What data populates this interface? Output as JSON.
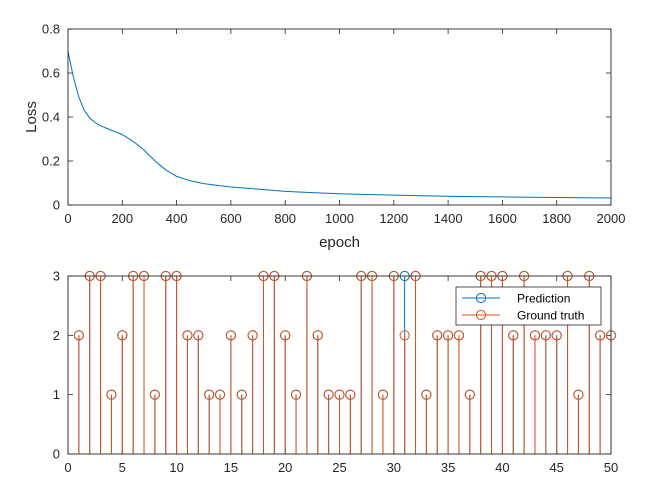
{
  "chart_data": [
    {
      "type": "line",
      "xlabel": "epoch",
      "ylabel": "Loss",
      "xlim": [
        0,
        2000
      ],
      "ylim": [
        0,
        0.8
      ],
      "xticks": [
        0,
        200,
        400,
        600,
        800,
        1000,
        1200,
        1400,
        1600,
        1800,
        2000
      ],
      "yticks": [
        0,
        0.2,
        0.4,
        0.6,
        0.8
      ],
      "grid": false,
      "series": [
        {
          "color": "#0072BD",
          "x": [
            0,
            20,
            40,
            60,
            80,
            100,
            120,
            150,
            180,
            200,
            220,
            250,
            280,
            300,
            330,
            360,
            400,
            450,
            500,
            550,
            600,
            650,
            700,
            800,
            900,
            1000,
            1100,
            1200,
            1300,
            1400,
            1500,
            1600,
            1700,
            1800,
            1900,
            2000
          ],
          "y": [
            0.7,
            0.58,
            0.49,
            0.43,
            0.395,
            0.375,
            0.36,
            0.345,
            0.33,
            0.32,
            0.305,
            0.28,
            0.25,
            0.225,
            0.19,
            0.16,
            0.13,
            0.11,
            0.097,
            0.089,
            0.082,
            0.077,
            0.072,
            0.062,
            0.056,
            0.051,
            0.048,
            0.045,
            0.042,
            0.04,
            0.038,
            0.037,
            0.035,
            0.034,
            0.033,
            0.032
          ]
        }
      ]
    },
    {
      "type": "stem",
      "xlim": [
        0,
        50
      ],
      "ylim": [
        0,
        3
      ],
      "xticks": [
        0,
        5,
        10,
        15,
        20,
        25,
        30,
        35,
        40,
        45,
        50
      ],
      "yticks": [
        0,
        1,
        2,
        3
      ],
      "grid": false,
      "legend": "top-right",
      "series": [
        {
          "name": "Prediction",
          "color": "#0072BD",
          "x": [
            1,
            2,
            3,
            4,
            5,
            6,
            7,
            8,
            9,
            10,
            11,
            12,
            13,
            14,
            15,
            16,
            17,
            18,
            19,
            20,
            21,
            22,
            23,
            24,
            25,
            26,
            27,
            28,
            29,
            30,
            31,
            32,
            33,
            34,
            35,
            36,
            37,
            38,
            39,
            40,
            41,
            42,
            43,
            44,
            45,
            46,
            47,
            48,
            49,
            50
          ],
          "y": [
            2,
            3,
            3,
            1,
            2,
            3,
            3,
            1,
            3,
            3,
            2,
            2,
            1,
            1,
            2,
            1,
            2,
            3,
            3,
            2,
            1,
            3,
            2,
            1,
            1,
            1,
            3,
            3,
            1,
            3,
            3,
            3,
            1,
            2,
            2,
            2,
            1,
            3,
            3,
            3,
            2,
            3,
            2,
            2,
            2,
            3,
            1,
            3,
            2,
            2
          ]
        },
        {
          "name": "Ground truth",
          "color": "#D95319",
          "x": [
            1,
            2,
            3,
            4,
            5,
            6,
            7,
            8,
            9,
            10,
            11,
            12,
            13,
            14,
            15,
            16,
            17,
            18,
            19,
            20,
            21,
            22,
            23,
            24,
            25,
            26,
            27,
            28,
            29,
            30,
            31,
            32,
            33,
            34,
            35,
            36,
            37,
            38,
            39,
            40,
            41,
            42,
            43,
            44,
            45,
            46,
            47,
            48,
            49,
            50
          ],
          "y": [
            2,
            3,
            3,
            1,
            2,
            3,
            3,
            1,
            3,
            3,
            2,
            2,
            1,
            1,
            2,
            1,
            2,
            3,
            3,
            2,
            1,
            3,
            2,
            1,
            1,
            1,
            3,
            3,
            1,
            3,
            2,
            3,
            1,
            2,
            2,
            2,
            1,
            3,
            3,
            3,
            2,
            3,
            2,
            2,
            2,
            3,
            1,
            3,
            2,
            2
          ]
        }
      ]
    }
  ]
}
